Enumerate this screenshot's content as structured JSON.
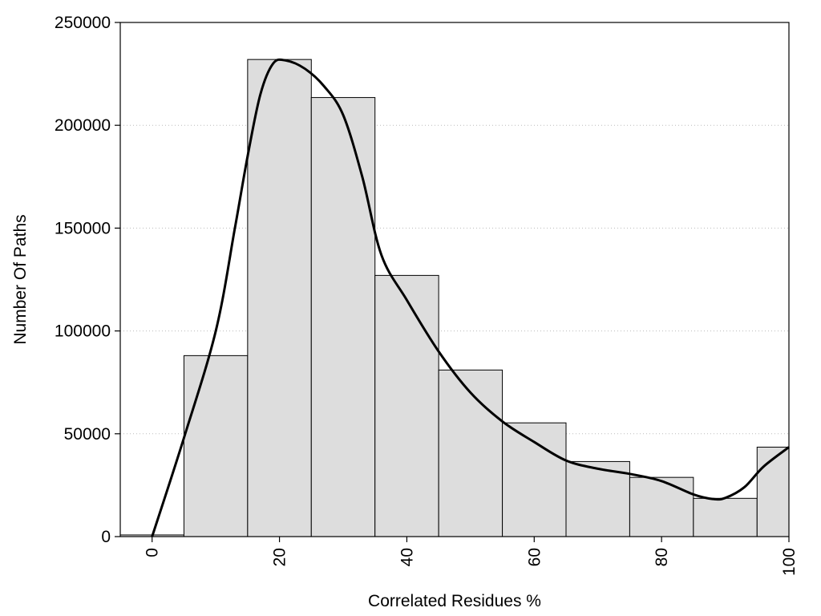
{
  "chart_data": {
    "type": "bar",
    "xlabel": "Correlated Residues %",
    "ylabel": "Number Of Paths",
    "xlim": [
      -5,
      100
    ],
    "ylim": [
      0,
      250000
    ],
    "x_ticks": [
      0,
      20,
      40,
      60,
      80,
      100
    ],
    "y_ticks": [
      0,
      50000,
      100000,
      150000,
      200000,
      250000
    ],
    "grid": "horizontal-dotted",
    "bar_color": "#dddddd",
    "bar_edge_color": "#000000",
    "bins": [
      {
        "start": -5,
        "end": 5,
        "value": 800
      },
      {
        "start": 5,
        "end": 15,
        "value": 88000
      },
      {
        "start": 15,
        "end": 25,
        "value": 232000
      },
      {
        "start": 25,
        "end": 35,
        "value": 213500
      },
      {
        "start": 35,
        "end": 45,
        "value": 127000
      },
      {
        "start": 45,
        "end": 55,
        "value": 81000
      },
      {
        "start": 55,
        "end": 65,
        "value": 55300
      },
      {
        "start": 65,
        "end": 75,
        "value": 36500
      },
      {
        "start": 75,
        "end": 85,
        "value": 28800
      },
      {
        "start": 85,
        "end": 95,
        "value": 18600
      },
      {
        "start": 95,
        "end": 100,
        "value": 43500
      }
    ],
    "curve": {
      "color": "#000000",
      "points": [
        [
          0,
          0
        ],
        [
          5,
          48000
        ],
        [
          10,
          100000
        ],
        [
          13,
          150000
        ],
        [
          15,
          185000
        ],
        [
          17,
          215000
        ],
        [
          19,
          230000
        ],
        [
          21,
          231500
        ],
        [
          24,
          227500
        ],
        [
          27,
          219000
        ],
        [
          30,
          205000
        ],
        [
          33,
          175000
        ],
        [
          36,
          137000
        ],
        [
          40,
          115000
        ],
        [
          45,
          90000
        ],
        [
          50,
          70000
        ],
        [
          55,
          56000
        ],
        [
          60,
          46000
        ],
        [
          65,
          37000
        ],
        [
          70,
          33000
        ],
        [
          75,
          30500
        ],
        [
          80,
          27000
        ],
        [
          85,
          20500
        ],
        [
          88,
          18300
        ],
        [
          90,
          18800
        ],
        [
          93,
          24000
        ],
        [
          96,
          34000
        ],
        [
          100,
          43500
        ]
      ]
    }
  }
}
